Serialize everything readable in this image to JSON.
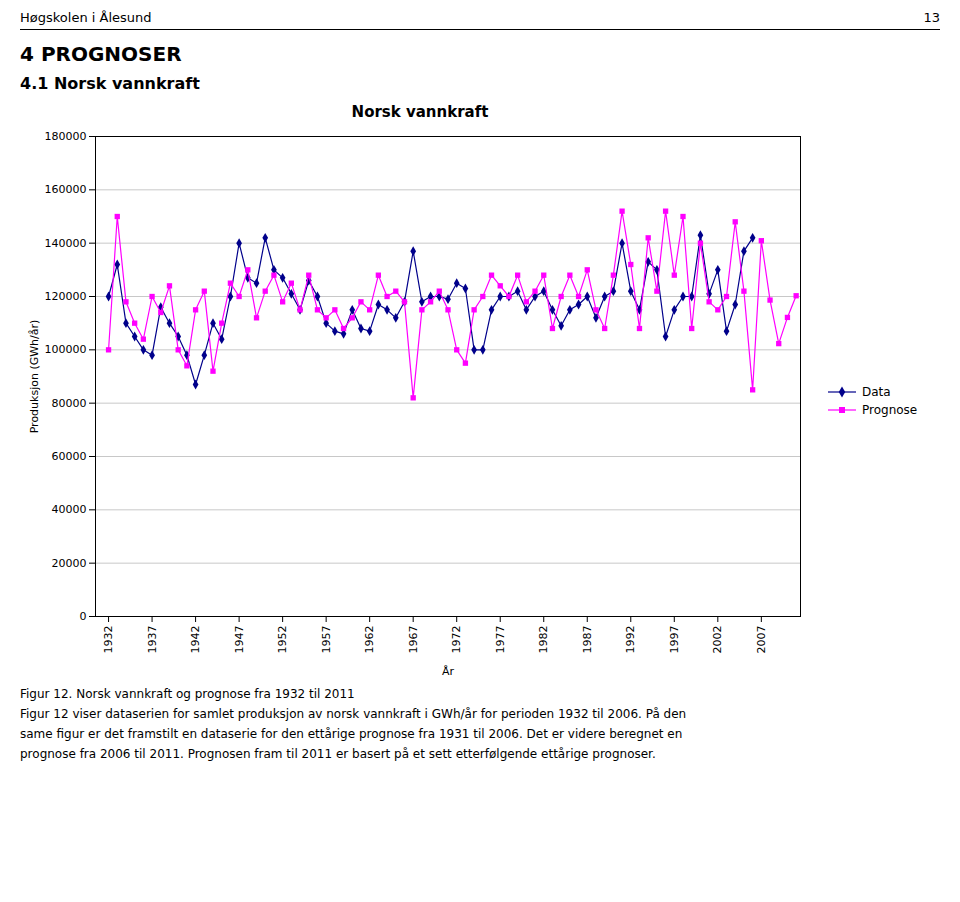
{
  "page": {
    "header_left": "Høgskolen i Ålesund",
    "header_right": "13",
    "section_title": "4 PROGNOSER",
    "subsection_title": "4.1 Norsk vannkraft",
    "caption": "Figur 12. Norsk vannkraft og prognose fra 1932 til 2011",
    "body_text": [
      "Figur 12 viser dataserien for samlet produksjon av norsk vannkraft i GWh/år for perioden 1932 til 2006. På den",
      "same figur er det framstilt en dataserie for den ettårige prognose fra 1931 til 2006. Det er videre beregnet en",
      "prognose fra 2006 til 2011. Prognosen fram til 2011 er basert på et sett etterfølgende ettårige prognoser."
    ]
  },
  "chart_data": {
    "type": "line",
    "title": "Norsk vannkraft",
    "xlabel": "År",
    "ylabel": "Produksjon (GWh/år)",
    "xlim": [
      1930.5,
      2011.5
    ],
    "xticks": [
      1932,
      1937,
      1942,
      1947,
      1952,
      1957,
      1962,
      1967,
      1972,
      1977,
      1982,
      1987,
      1992,
      1997,
      2002,
      2007
    ],
    "ylim": [
      0,
      180000
    ],
    "yticks": [
      0,
      20000,
      40000,
      60000,
      80000,
      100000,
      120000,
      140000,
      160000,
      180000
    ],
    "grid": true,
    "legend": "right",
    "series": [
      {
        "name": "Data",
        "color": "#00008B",
        "marker": "diamond",
        "x": [
          1932,
          1933,
          1934,
          1935,
          1936,
          1937,
          1938,
          1939,
          1940,
          1941,
          1942,
          1943,
          1944,
          1945,
          1946,
          1947,
          1948,
          1949,
          1950,
          1951,
          1952,
          1953,
          1954,
          1955,
          1956,
          1957,
          1958,
          1959,
          1960,
          1961,
          1962,
          1963,
          1964,
          1965,
          1966,
          1967,
          1968,
          1969,
          1970,
          1971,
          1972,
          1973,
          1974,
          1975,
          1976,
          1977,
          1978,
          1979,
          1980,
          1981,
          1982,
          1983,
          1984,
          1985,
          1986,
          1987,
          1988,
          1989,
          1990,
          1991,
          1992,
          1993,
          1994,
          1995,
          1996,
          1997,
          1998,
          1999,
          2000,
          2001,
          2002,
          2003,
          2004,
          2005,
          2006
        ],
        "values": [
          120000,
          132000,
          110000,
          105000,
          100000,
          98000,
          116000,
          110000,
          105000,
          98000,
          87000,
          98000,
          110000,
          104000,
          120000,
          140000,
          127000,
          125000,
          142000,
          130000,
          127000,
          121000,
          115000,
          126000,
          120000,
          110000,
          107000,
          106000,
          115000,
          108000,
          107000,
          117000,
          115000,
          112000,
          118000,
          137000,
          118000,
          120000,
          120000,
          119000,
          125000,
          123000,
          100000,
          100000,
          115000,
          120000,
          120000,
          122000,
          115000,
          120000,
          122000,
          115000,
          109000,
          115000,
          117000,
          120000,
          112000,
          120000,
          122000,
          140000,
          122000,
          115000,
          133000,
          130000,
          105000,
          115000,
          120000,
          120000,
          143000,
          121000,
          130000,
          107000,
          117000,
          137000,
          142000
        ]
      },
      {
        "name": "Prognose",
        "color": "#FF00FF",
        "marker": "square",
        "x": [
          1932,
          1933,
          1934,
          1935,
          1936,
          1937,
          1938,
          1939,
          1940,
          1941,
          1942,
          1943,
          1944,
          1945,
          1946,
          1947,
          1948,
          1949,
          1950,
          1951,
          1952,
          1953,
          1954,
          1955,
          1956,
          1957,
          1958,
          1959,
          1960,
          1961,
          1962,
          1963,
          1964,
          1965,
          1966,
          1967,
          1968,
          1969,
          1970,
          1971,
          1972,
          1973,
          1974,
          1975,
          1976,
          1977,
          1978,
          1979,
          1980,
          1981,
          1982,
          1983,
          1984,
          1985,
          1986,
          1987,
          1988,
          1989,
          1990,
          1991,
          1992,
          1993,
          1994,
          1995,
          1996,
          1997,
          1998,
          1999,
          2000,
          2001,
          2002,
          2003,
          2004,
          2005,
          2006,
          2007,
          2008,
          2009,
          2010,
          2011
        ],
        "values": [
          100000,
          150000,
          118000,
          110000,
          104000,
          120000,
          114000,
          124000,
          100000,
          94000,
          115000,
          122000,
          92000,
          110000,
          125000,
          120000,
          130000,
          112000,
          122000,
          128000,
          118000,
          125000,
          115000,
          128000,
          115000,
          112000,
          115000,
          108000,
          112000,
          118000,
          115000,
          128000,
          120000,
          122000,
          118000,
          82000,
          115000,
          118000,
          122000,
          115000,
          100000,
          95000,
          115000,
          120000,
          128000,
          124000,
          120000,
          128000,
          118000,
          122000,
          128000,
          108000,
          120000,
          128000,
          120000,
          130000,
          115000,
          108000,
          128000,
          152000,
          132000,
          108000,
          142000,
          122000,
          152000,
          128000,
          150000,
          108000,
          140000,
          118000,
          115000,
          120000,
          148000,
          122000,
          85000,
          140914,
          118656,
          102331,
          112154,
          120276
        ]
      }
    ]
  }
}
